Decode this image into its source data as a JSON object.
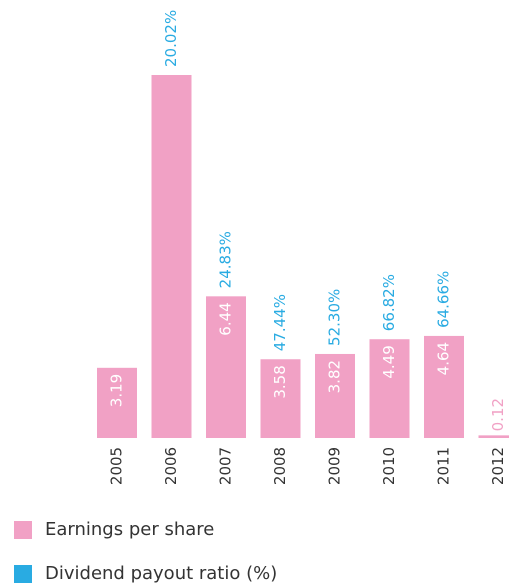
{
  "chart_data": {
    "type": "bar",
    "categories": [
      "2005",
      "2006",
      "2007",
      "2008",
      "2009",
      "2010",
      "2011",
      "2012"
    ],
    "series": [
      {
        "name": "Earnings per share",
        "color": "#f1a1c5",
        "values": [
          3.19,
          16.5,
          6.44,
          3.58,
          3.82,
          4.49,
          4.64,
          0.12
        ],
        "value_labels": [
          "3.19",
          null,
          "6.44",
          "3.58",
          "3.82",
          "4.49",
          "4.64",
          "0.12"
        ]
      },
      {
        "name": "Dividend payout ratio (%)",
        "color": "#29abe2",
        "values": [
          null,
          20.02,
          24.83,
          47.44,
          52.3,
          66.82,
          64.66,
          null
        ],
        "value_labels": [
          null,
          "20.02%",
          "24.83%",
          "47.44%",
          "52.30%",
          "66.82%",
          "64.66%",
          null
        ]
      }
    ]
  }
}
